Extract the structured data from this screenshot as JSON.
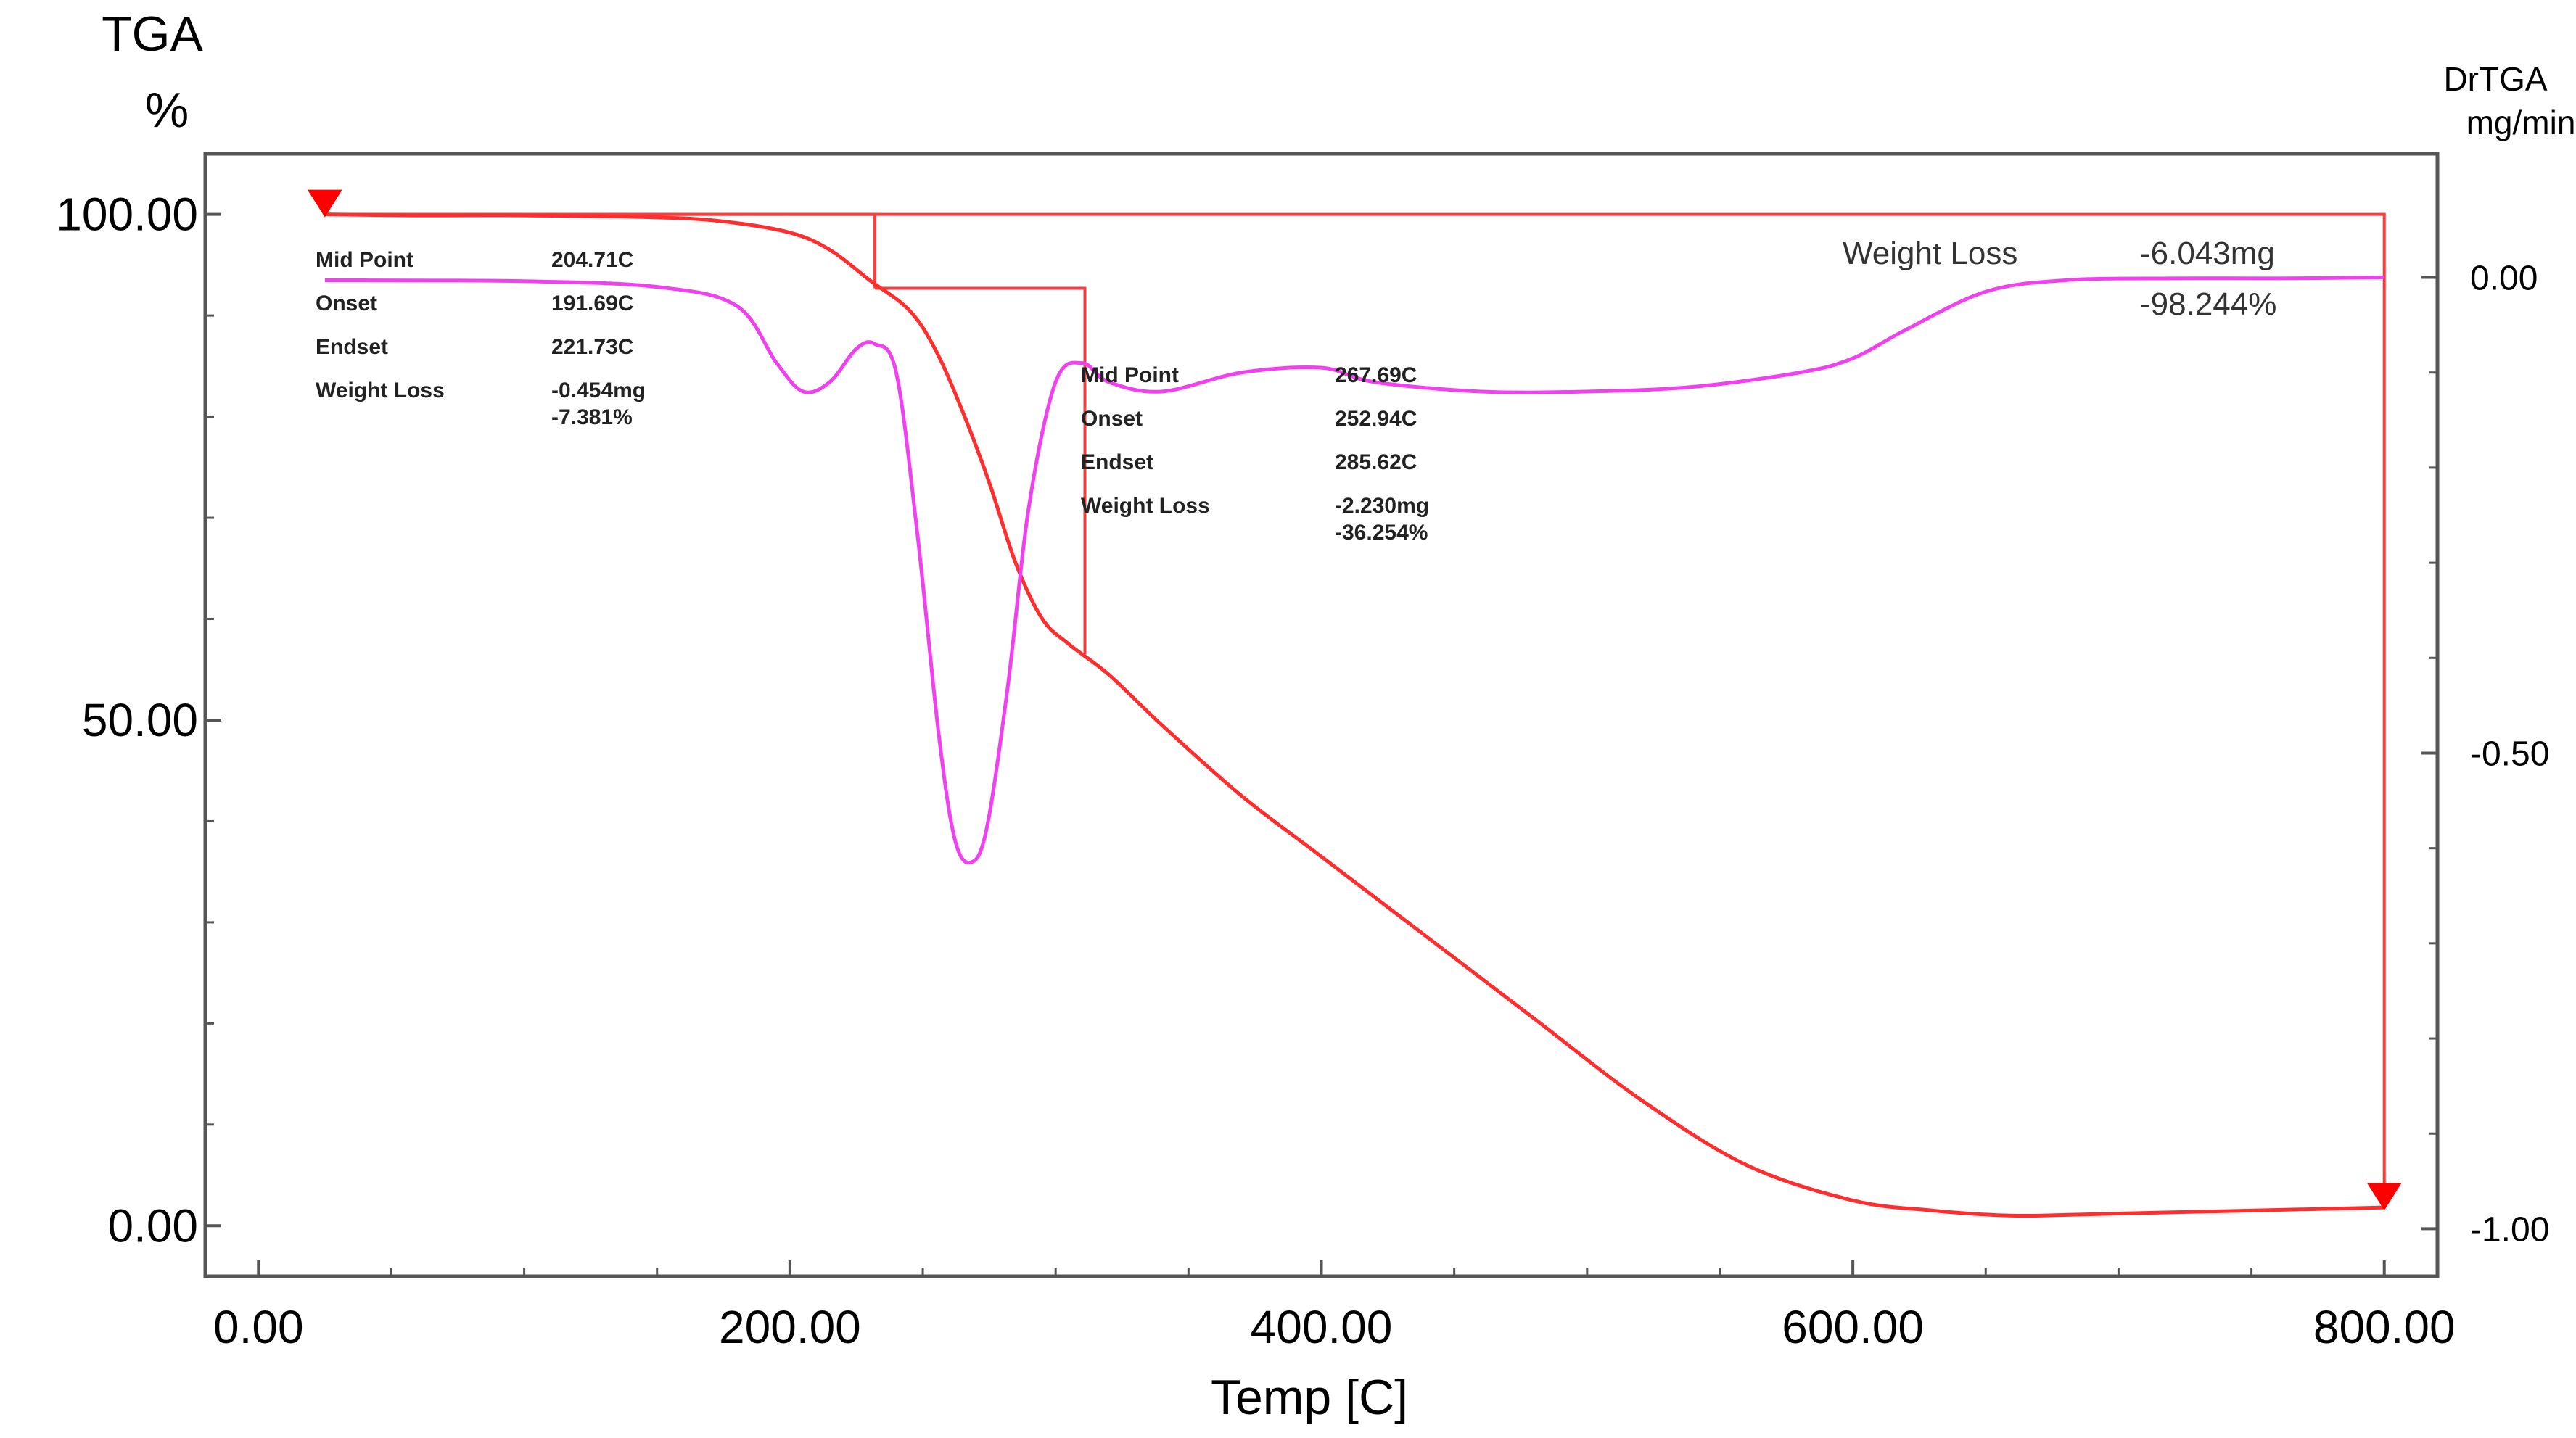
{
  "chart_data": {
    "type": "line",
    "left_axis": {
      "title": "TGA",
      "unit": "%",
      "ticks": [
        0,
        50,
        100
      ],
      "tick_labels": [
        "0.00",
        "50.00",
        "100.00"
      ],
      "range": [
        -5,
        106
      ]
    },
    "right_axis": {
      "title": "DrTGA",
      "unit": "mg/min",
      "ticks": [
        0,
        -0.5,
        -1
      ],
      "tick_labels": [
        "0.00",
        "-0.50",
        "-1.00"
      ],
      "range": [
        -1.05,
        0.13
      ]
    },
    "x_axis": {
      "title": "Temp  [C]",
      "ticks": [
        0,
        200,
        400,
        600,
        800
      ],
      "tick_labels": [
        "0.00",
        "200.00",
        "400.00",
        "600.00",
        "800.00"
      ],
      "range": [
        -20,
        820
      ]
    },
    "grid": false,
    "colors": {
      "tga": "#ff2d2d",
      "drtga": "#f040f0",
      "steps": "#ff3a3a",
      "axis": "#555555"
    },
    "series": [
      {
        "axis": "left",
        "x": [
          25,
          60,
          100,
          150,
          175,
          200,
          215,
          230,
          245,
          255,
          265,
          275,
          285,
          295,
          305,
          320,
          340,
          370,
          400,
          440,
          480,
          520,
          560,
          600,
          630,
          650,
          660,
          670,
          700,
          750,
          800
        ],
        "y": [
          100,
          99.9,
          99.9,
          99.7,
          99.3,
          98.2,
          96.5,
          93.5,
          90.5,
          86.5,
          80.5,
          73.5,
          65.5,
          60,
          57.5,
          54.5,
          49.5,
          42.5,
          36.5,
          28.5,
          20.5,
          12.5,
          6,
          2.5,
          1.5,
          1.1,
          1.0,
          1.0,
          1.2,
          1.5,
          1.8
        ]
      },
      {
        "axis": "right",
        "x": [
          25,
          100,
          150,
          180,
          195,
          205,
          215,
          225,
          232,
          240,
          248,
          256,
          262,
          268,
          274,
          282,
          290,
          300,
          310,
          320,
          340,
          370,
          400,
          420,
          460,
          500,
          540,
          580,
          600,
          620,
          650,
          680,
          720,
          760,
          800
        ],
        "y": [
          -0.003,
          -0.004,
          -0.01,
          -0.03,
          -0.09,
          -0.12,
          -0.11,
          -0.075,
          -0.07,
          -0.1,
          -0.27,
          -0.48,
          -0.59,
          -0.615,
          -0.58,
          -0.43,
          -0.24,
          -0.11,
          -0.09,
          -0.11,
          -0.12,
          -0.1,
          -0.095,
          -0.11,
          -0.12,
          -0.12,
          -0.115,
          -0.1,
          -0.085,
          -0.055,
          -0.015,
          -0.003,
          -0.001,
          -0.001,
          0
        ]
      }
    ],
    "step_segments": [
      {
        "x1": 25,
        "x2": 232,
        "y1": 100,
        "y2": 92.7
      },
      {
        "x1": 232,
        "x2": 311,
        "y1": 92.7,
        "y2": 56.5
      },
      {
        "x1": 25,
        "x2": 800,
        "y1": 100,
        "y2": 1.8
      }
    ],
    "markers": [
      {
        "x": 25,
        "y": 100
      },
      {
        "x": 800,
        "y": 1.8
      }
    ],
    "annotations": [
      {
        "rows": [
          {
            "label": "Mid Point",
            "value": "204.71C"
          },
          {
            "label": "Onset",
            "value": "191.69C"
          },
          {
            "label": "Endset",
            "value": "221.73C"
          },
          {
            "label": "Weight Loss",
            "value": "-0.454mg",
            "extra": "-7.381%"
          }
        ]
      },
      {
        "rows": [
          {
            "label": "Mid Point",
            "value": "267.69C"
          },
          {
            "label": "Onset",
            "value": "252.94C"
          },
          {
            "label": "Endset",
            "value": "285.62C"
          },
          {
            "label": "Weight Loss",
            "value": "-2.230mg",
            "extra": "-36.254%"
          }
        ]
      },
      {
        "rows": [
          {
            "label": "Weight Loss",
            "value": "-6.043mg",
            "extra": "-98.244%"
          }
        ]
      }
    ]
  }
}
